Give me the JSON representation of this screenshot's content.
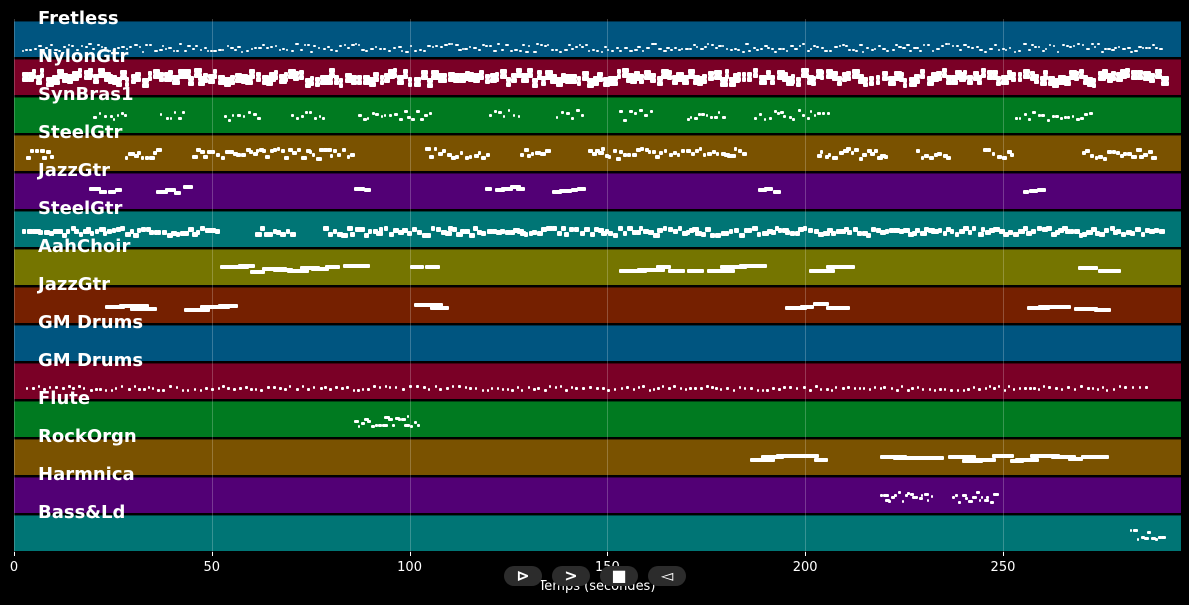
{
  "tracks": [
    {
      "name": "Fretless",
      "color": "#005580",
      "pattern": "dense-small",
      "segments": [
        [
          2,
          290
        ]
      ]
    },
    {
      "name": "NylonGtr",
      "color": "#7a0026",
      "pattern": "chords-large",
      "segments": [
        [
          2,
          290
        ]
      ]
    },
    {
      "name": "SynBras1",
      "color": "#007a20",
      "pattern": "sparse-small",
      "segments": [
        [
          20,
          28
        ],
        [
          37,
          43
        ],
        [
          53,
          62
        ],
        [
          70,
          79
        ],
        [
          87,
          106
        ],
        [
          120,
          128
        ],
        [
          137,
          144
        ],
        [
          153,
          161
        ],
        [
          170,
          179
        ],
        [
          187,
          206
        ],
        [
          253,
          273
        ]
      ]
    },
    {
      "name": "SteelGtr",
      "color": "#7a5200",
      "pattern": "medium",
      "segments": [
        [
          3,
          10
        ],
        [
          28,
          36
        ],
        [
          45,
          85
        ],
        [
          104,
          120
        ],
        [
          128,
          135
        ],
        [
          145,
          185
        ],
        [
          203,
          220
        ],
        [
          228,
          236
        ],
        [
          245,
          252
        ],
        [
          270,
          288
        ]
      ]
    },
    {
      "name": "JazzGtr",
      "color": "#520075",
      "pattern": "blobs",
      "segments": [
        [
          19,
          27
        ],
        [
          36,
          44
        ],
        [
          86,
          89
        ],
        [
          119,
          127
        ],
        [
          136,
          144
        ],
        [
          188,
          193
        ],
        [
          255,
          259
        ]
      ]
    },
    {
      "name": "SteelGtr",
      "color": "#007575",
      "pattern": "dense-large",
      "segments": [
        [
          2,
          52
        ],
        [
          61,
          70
        ],
        [
          78,
          290
        ]
      ]
    },
    {
      "name": "AahChoir",
      "color": "#757500",
      "pattern": "long",
      "segments": [
        [
          52,
          67
        ],
        [
          69,
          84
        ],
        [
          100,
          106
        ],
        [
          153,
          167
        ],
        [
          170,
          184
        ],
        [
          201,
          207
        ],
        [
          269,
          275
        ]
      ]
    },
    {
      "name": "JazzGtr",
      "color": "#752000",
      "pattern": "long",
      "segments": [
        [
          23,
          32
        ],
        [
          43,
          52
        ],
        [
          101,
          107
        ],
        [
          195,
          199
        ],
        [
          202,
          207
        ],
        [
          256,
          265
        ],
        [
          268,
          273
        ]
      ]
    },
    {
      "name": "GM Drums",
      "color": "#005580",
      "pattern": "none",
      "segments": []
    },
    {
      "name": "GM Drums",
      "color": "#7a0026",
      "pattern": "perc",
      "segments": [
        [
          3,
          287
        ]
      ]
    },
    {
      "name": "Flute",
      "color": "#007a20",
      "pattern": "melody",
      "segments": [
        [
          86,
          102
        ]
      ]
    },
    {
      "name": "RockOrgn",
      "color": "#7a5200",
      "pattern": "long",
      "segments": [
        [
          186,
          203
        ],
        [
          219,
          235
        ],
        [
          236,
          252
        ],
        [
          253,
          270
        ]
      ]
    },
    {
      "name": "Harmnica",
      "color": "#520075",
      "pattern": "melody",
      "segments": [
        [
          219,
          232
        ],
        [
          237,
          248
        ]
      ]
    },
    {
      "name": "Bass&Ld",
      "color": "#007575",
      "pattern": "melody",
      "segments": [
        [
          282,
          290
        ]
      ]
    }
  ],
  "xaxis": {
    "label": "Temps (secondes)",
    "min": 0,
    "max": 295,
    "ticks": [
      0,
      50,
      100,
      150,
      200,
      250
    ]
  },
  "controls": [
    {
      "name": "play-button",
      "symbol": "⊳"
    },
    {
      "name": "forward-button",
      "symbol": ">"
    },
    {
      "name": "stop-button",
      "symbol": "■"
    },
    {
      "name": "back-button",
      "symbol": "◅"
    }
  ]
}
